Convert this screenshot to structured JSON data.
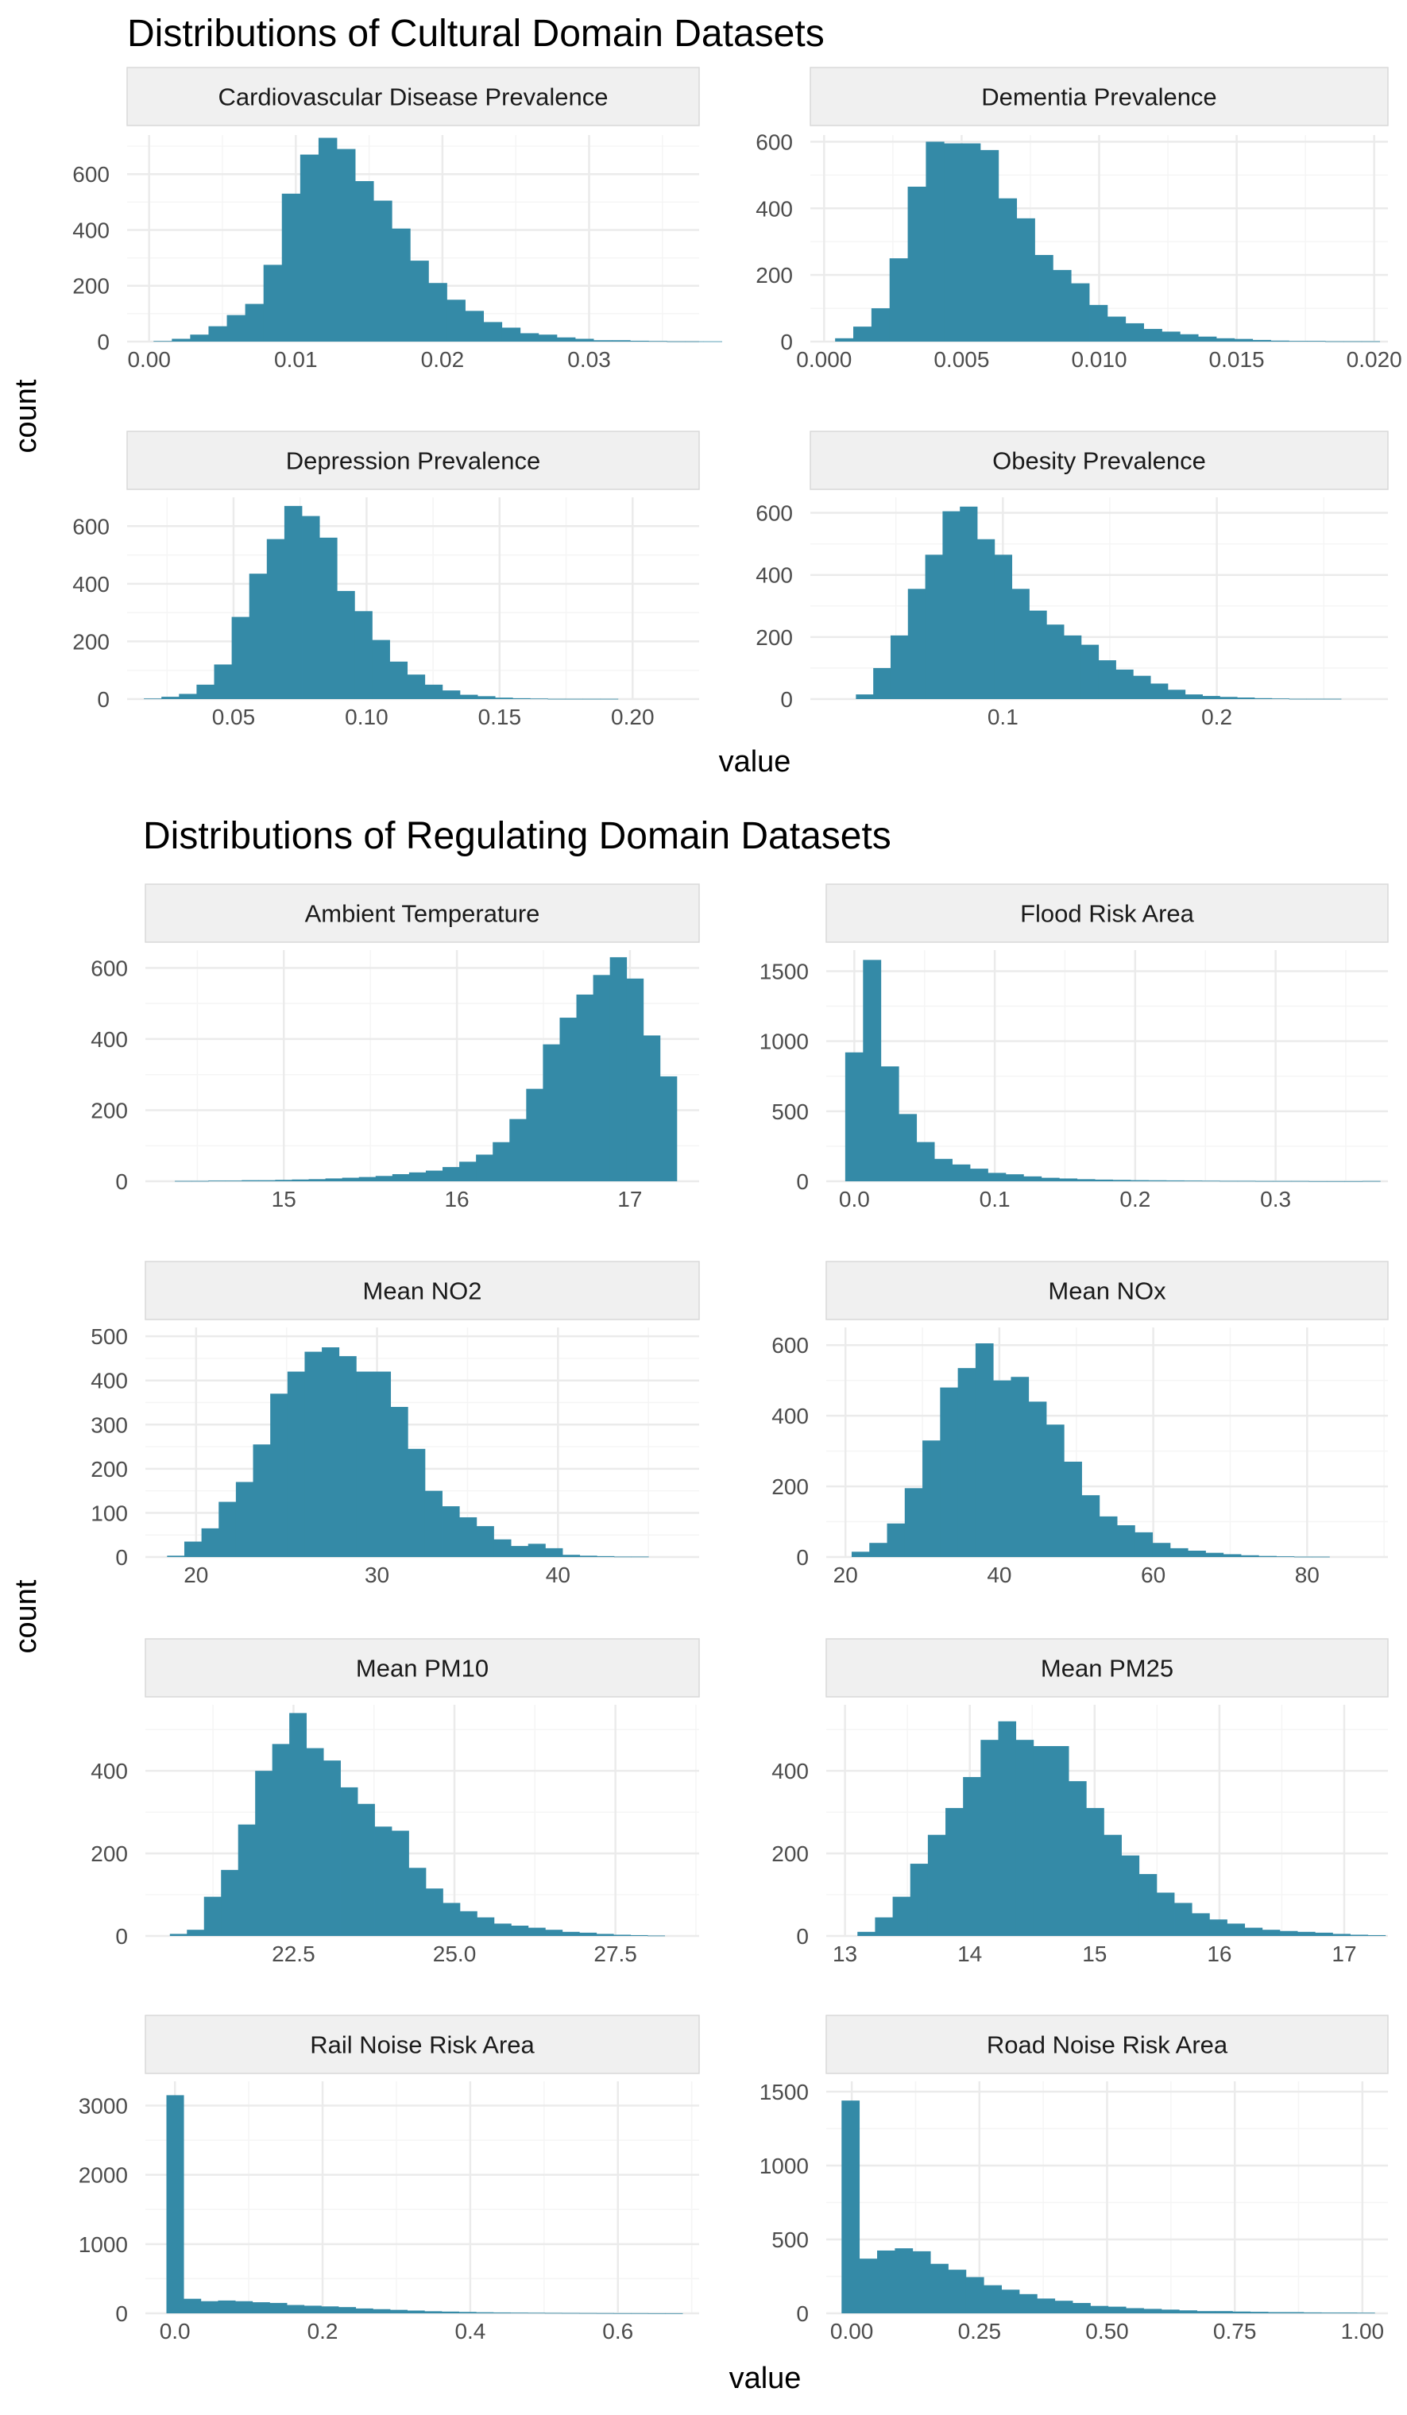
{
  "colors": {
    "bar": "#348aa7",
    "strip_bg": "#f0f0f0",
    "strip_border": "#d9d9d9",
    "grid_major": "#ebebeb",
    "grid_minor": "#f5f5f5"
  },
  "figures": [
    {
      "title": "Distributions of Cultural Domain Datasets",
      "xlabel": "value",
      "ylabel": "count"
    },
    {
      "title": "Distributions of Regulating Domain Datasets",
      "xlabel": "value",
      "ylabel": "count"
    }
  ],
  "chart_data": [
    {
      "type": "bar",
      "figure": 0,
      "title": "Cardiovascular Disease Prevalence",
      "xlim": [
        -0.0015,
        0.0375
      ],
      "ylim": [
        0,
        740
      ],
      "xticks": [
        0,
        0.01,
        0.02,
        0.03
      ],
      "xtick_labels": [
        "0.00",
        "0.01",
        "0.02",
        "0.03"
      ],
      "yticks": [
        0,
        200,
        400,
        600
      ],
      "ytick_labels": [
        "0",
        "200",
        "400",
        "600"
      ],
      "bin_start": 0.0003,
      "bin_width": 0.00125,
      "values": [
        2,
        10,
        25,
        55,
        95,
        135,
        275,
        530,
        670,
        730,
        690,
        575,
        505,
        405,
        290,
        210,
        150,
        110,
        70,
        50,
        30,
        25,
        15,
        10,
        5,
        5,
        3,
        2,
        1,
        1,
        1
      ]
    },
    {
      "type": "bar",
      "figure": 0,
      "title": "Dementia Prevalence",
      "xlim": [
        -0.0005,
        0.0205
      ],
      "ylim": [
        0,
        620
      ],
      "xticks": [
        0,
        0.005,
        0.01,
        0.015,
        0.02
      ],
      "xtick_labels": [
        "0.000",
        "0.005",
        "0.010",
        "0.015",
        "0.020"
      ],
      "yticks": [
        0,
        200,
        400,
        600
      ],
      "ytick_labels": [
        "0",
        "200",
        "400",
        "600"
      ],
      "bin_start": 0.0004,
      "bin_width": 0.00066,
      "values": [
        10,
        45,
        100,
        250,
        465,
        600,
        595,
        595,
        575,
        430,
        370,
        260,
        215,
        175,
        110,
        75,
        55,
        38,
        30,
        22,
        15,
        10,
        8,
        5,
        3,
        2,
        2,
        1,
        1,
        1
      ]
    },
    {
      "type": "bar",
      "figure": 0,
      "title": "Depression Prevalence",
      "xlim": [
        0.01,
        0.225
      ],
      "ylim": [
        0,
        700
      ],
      "xticks": [
        0.05,
        0.1,
        0.15,
        0.2
      ],
      "xtick_labels": [
        "0.05",
        "0.10",
        "0.15",
        "0.20"
      ],
      "yticks": [
        0,
        200,
        400,
        600
      ],
      "ytick_labels": [
        "0",
        "200",
        "400",
        "600"
      ],
      "bin_start": 0.0163,
      "bin_width": 0.0066,
      "values": [
        2,
        8,
        18,
        50,
        120,
        285,
        435,
        555,
        670,
        635,
        560,
        375,
        305,
        205,
        130,
        85,
        50,
        30,
        15,
        10,
        5,
        3,
        2,
        1,
        1,
        1,
        1,
        0,
        0,
        0
      ]
    },
    {
      "type": "bar",
      "figure": 0,
      "title": "Obesity Prevalence",
      "xlim": [
        0.01,
        0.28
      ],
      "ylim": [
        0,
        650
      ],
      "xticks": [
        0.1,
        0.2
      ],
      "xtick_labels": [
        "0.1",
        "0.2"
      ],
      "bin_start": 0.0313,
      "bin_width": 0.0081,
      "yticks": [
        0,
        200,
        400,
        600
      ],
      "ytick_labels": [
        "0",
        "200",
        "400",
        "600"
      ],
      "values": [
        15,
        100,
        205,
        355,
        465,
        605,
        620,
        515,
        465,
        355,
        285,
        240,
        205,
        175,
        125,
        95,
        75,
        50,
        30,
        15,
        10,
        7,
        5,
        3,
        2,
        1,
        1,
        1,
        0,
        0
      ]
    },
    {
      "type": "bar",
      "figure": 1,
      "title": "Ambient Temperature",
      "xlim": [
        14.2,
        17.4
      ],
      "ylim": [
        0,
        650
      ],
      "xticks": [
        15,
        16,
        17
      ],
      "xtick_labels": [
        "15",
        "16",
        "17"
      ],
      "yticks": [
        0,
        200,
        400,
        600
      ],
      "ytick_labels": [
        "0",
        "200",
        "400",
        "600"
      ],
      "bin_start": 14.37,
      "bin_width": 0.0967,
      "values": [
        1,
        1,
        2,
        2,
        3,
        3,
        4,
        5,
        6,
        8,
        10,
        12,
        15,
        20,
        25,
        30,
        40,
        55,
        75,
        110,
        175,
        260,
        385,
        460,
        525,
        580,
        630,
        570,
        410,
        295
      ]
    },
    {
      "type": "bar",
      "figure": 1,
      "title": "Flood Risk Area",
      "xlim": [
        -0.02,
        0.38
      ],
      "ylim": [
        0,
        1650
      ],
      "xticks": [
        0,
        0.1,
        0.2,
        0.3
      ],
      "xtick_labels": [
        "0.0",
        "0.1",
        "0.2",
        "0.3"
      ],
      "yticks": [
        0,
        500,
        1000,
        1500
      ],
      "ytick_labels": [
        "0",
        "500",
        "1000",
        "1500"
      ],
      "bin_start": -0.0065,
      "bin_width": 0.0127,
      "values": [
        920,
        1580,
        820,
        480,
        280,
        160,
        120,
        90,
        60,
        50,
        35,
        25,
        20,
        15,
        12,
        10,
        8,
        7,
        6,
        5,
        4,
        3,
        3,
        2,
        2,
        2,
        1,
        1,
        1,
        2
      ]
    },
    {
      "type": "bar",
      "figure": 1,
      "title": "Mean NO2",
      "xlim": [
        17.2,
        47.8
      ],
      "ylim": [
        0,
        520
      ],
      "xticks": [
        20,
        30,
        40
      ],
      "xtick_labels": [
        "20",
        "30",
        "40"
      ],
      "yticks": [
        0,
        100,
        200,
        300,
        400,
        500
      ],
      "ytick_labels": [
        "0",
        "100",
        "200",
        "300",
        "400",
        "500"
      ],
      "bin_start": 18.4,
      "bin_width": 0.95,
      "values": [
        3,
        35,
        65,
        125,
        170,
        255,
        370,
        420,
        465,
        475,
        455,
        420,
        420,
        340,
        245,
        150,
        115,
        90,
        70,
        40,
        25,
        30,
        20,
        5,
        3,
        2,
        1,
        1,
        0,
        0
      ]
    },
    {
      "type": "bar",
      "figure": 1,
      "title": "Mean NOx",
      "xlim": [
        17.5,
        90.5
      ],
      "ylim": [
        0,
        650
      ],
      "xticks": [
        20,
        40,
        60,
        80
      ],
      "xtick_labels": [
        "20",
        "40",
        "60",
        "80"
      ],
      "yticks": [
        0,
        200,
        400,
        600
      ],
      "ytick_labels": [
        "0",
        "200",
        "400",
        "600"
      ],
      "bin_start": 20.8,
      "bin_width": 2.3,
      "values": [
        15,
        40,
        95,
        195,
        330,
        480,
        535,
        605,
        500,
        510,
        440,
        375,
        270,
        175,
        115,
        90,
        70,
        40,
        25,
        18,
        12,
        8,
        5,
        3,
        2,
        1,
        1,
        0,
        0,
        0
      ]
    },
    {
      "type": "bar",
      "figure": 1,
      "title": "Mean PM10",
      "xlim": [
        20.2,
        28.8
      ],
      "ylim": [
        0,
        560
      ],
      "xticks": [
        22.5,
        25,
        27.5
      ],
      "xtick_labels": [
        "22.5",
        "25.0",
        "27.5"
      ],
      "yticks": [
        0,
        200,
        400
      ],
      "ytick_labels": [
        "0",
        "200",
        "400"
      ],
      "bin_start": 20.58,
      "bin_width": 0.265,
      "values": [
        5,
        15,
        95,
        160,
        270,
        400,
        465,
        540,
        455,
        425,
        360,
        320,
        265,
        255,
        165,
        115,
        80,
        60,
        45,
        30,
        25,
        20,
        15,
        10,
        8,
        5,
        3,
        2,
        1,
        0
      ]
    },
    {
      "type": "bar",
      "figure": 1,
      "title": "Mean PM25",
      "xlim": [
        12.85,
        17.35
      ],
      "ylim": [
        0,
        560
      ],
      "xticks": [
        13,
        14,
        15,
        16,
        17
      ],
      "xtick_labels": [
        "13",
        "14",
        "15",
        "16",
        "17"
      ],
      "yticks": [
        0,
        200,
        400
      ],
      "ytick_labels": [
        "0",
        "200",
        "400"
      ],
      "bin_start": 13.1,
      "bin_width": 0.141,
      "values": [
        10,
        45,
        95,
        175,
        245,
        310,
        385,
        475,
        520,
        475,
        460,
        460,
        375,
        310,
        245,
        195,
        150,
        105,
        80,
        55,
        40,
        30,
        20,
        15,
        12,
        10,
        8,
        5,
        3,
        2
      ]
    },
    {
      "type": "bar",
      "figure": 1,
      "title": "Rail Noise Risk Area",
      "xlim": [
        -0.04,
        0.71
      ],
      "ylim": [
        0,
        3350
      ],
      "xticks": [
        0,
        0.2,
        0.4,
        0.6
      ],
      "xtick_labels": [
        "0.0",
        "0.2",
        "0.4",
        "0.6"
      ],
      "yticks": [
        0,
        1000,
        2000,
        3000
      ],
      "ytick_labels": [
        "0",
        "1000",
        "2000",
        "3000"
      ],
      "bin_start": -0.0115,
      "bin_width": 0.0233,
      "values": [
        3150,
        210,
        175,
        185,
        175,
        160,
        150,
        120,
        110,
        100,
        90,
        70,
        60,
        50,
        40,
        30,
        25,
        20,
        15,
        12,
        10,
        8,
        6,
        5,
        4,
        3,
        2,
        2,
        1,
        1
      ]
    },
    {
      "type": "bar",
      "figure": 1,
      "title": "Road Noise Risk Area",
      "xlim": [
        -0.05,
        1.05
      ],
      "ylim": [
        0,
        1570
      ],
      "xticks": [
        0,
        0.25,
        0.5,
        0.75,
        1
      ],
      "xtick_labels": [
        "0.00",
        "0.25",
        "0.50",
        "0.75",
        "1.00"
      ],
      "yticks": [
        0,
        500,
        1000,
        1500
      ],
      "ytick_labels": [
        "0",
        "500",
        "1000",
        "1500"
      ],
      "bin_start": -0.02,
      "bin_width": 0.0348,
      "values": [
        1440,
        370,
        425,
        440,
        420,
        335,
        295,
        245,
        190,
        160,
        130,
        100,
        85,
        70,
        50,
        45,
        35,
        30,
        25,
        20,
        15,
        15,
        12,
        10,
        8,
        8,
        6,
        5,
        5,
        4
      ]
    }
  ]
}
